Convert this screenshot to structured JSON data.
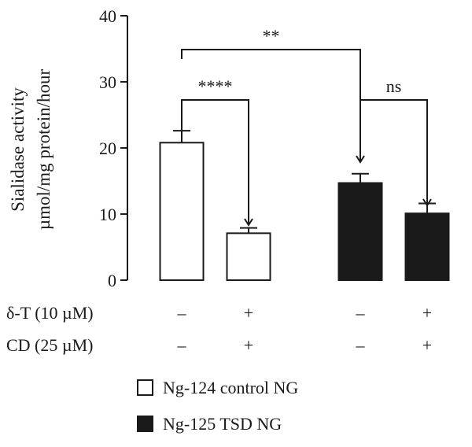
{
  "chart_data": {
    "type": "bar",
    "ylabel_line1": "Sialidase activity",
    "ylabel_line2": "µmol/mg protein/hour",
    "ylim": [
      0,
      40
    ],
    "yticks": [
      0,
      10,
      20,
      30,
      40
    ],
    "bars": [
      {
        "group": "Ng-124 control NG",
        "value": 20.8,
        "error": 1.8,
        "delta_t": "–",
        "cd": "–"
      },
      {
        "group": "Ng-124 control NG",
        "value": 7.1,
        "error": 0.8,
        "delta_t": "+",
        "cd": "+"
      },
      {
        "group": "Ng-125 TSD NG",
        "value": 14.7,
        "error": 1.4,
        "delta_t": "–",
        "cd": "–"
      },
      {
        "group": "Ng-125 TSD NG",
        "value": 10.1,
        "error": 1.5,
        "delta_t": "+",
        "cd": "+"
      }
    ],
    "conditions": [
      {
        "label": "δ-T (10 µM)",
        "key": "delta_t"
      },
      {
        "label": "CD (25 µM)",
        "key": "cd"
      }
    ],
    "significance": [
      {
        "from": 0,
        "to": 1,
        "label": "****"
      },
      {
        "from": 0,
        "to": 2,
        "label": "**"
      },
      {
        "from": 2,
        "to": 3,
        "label": "ns"
      }
    ],
    "legend": [
      {
        "label": "Ng-124 control NG",
        "fill": "#ffffff"
      },
      {
        "label": "Ng-125 TSD NG",
        "fill": "#1a1a1a"
      }
    ],
    "colors": {
      "control_fill": "#ffffff",
      "tsd_fill": "#1a1a1a",
      "stroke": "#1a1a1a"
    }
  }
}
